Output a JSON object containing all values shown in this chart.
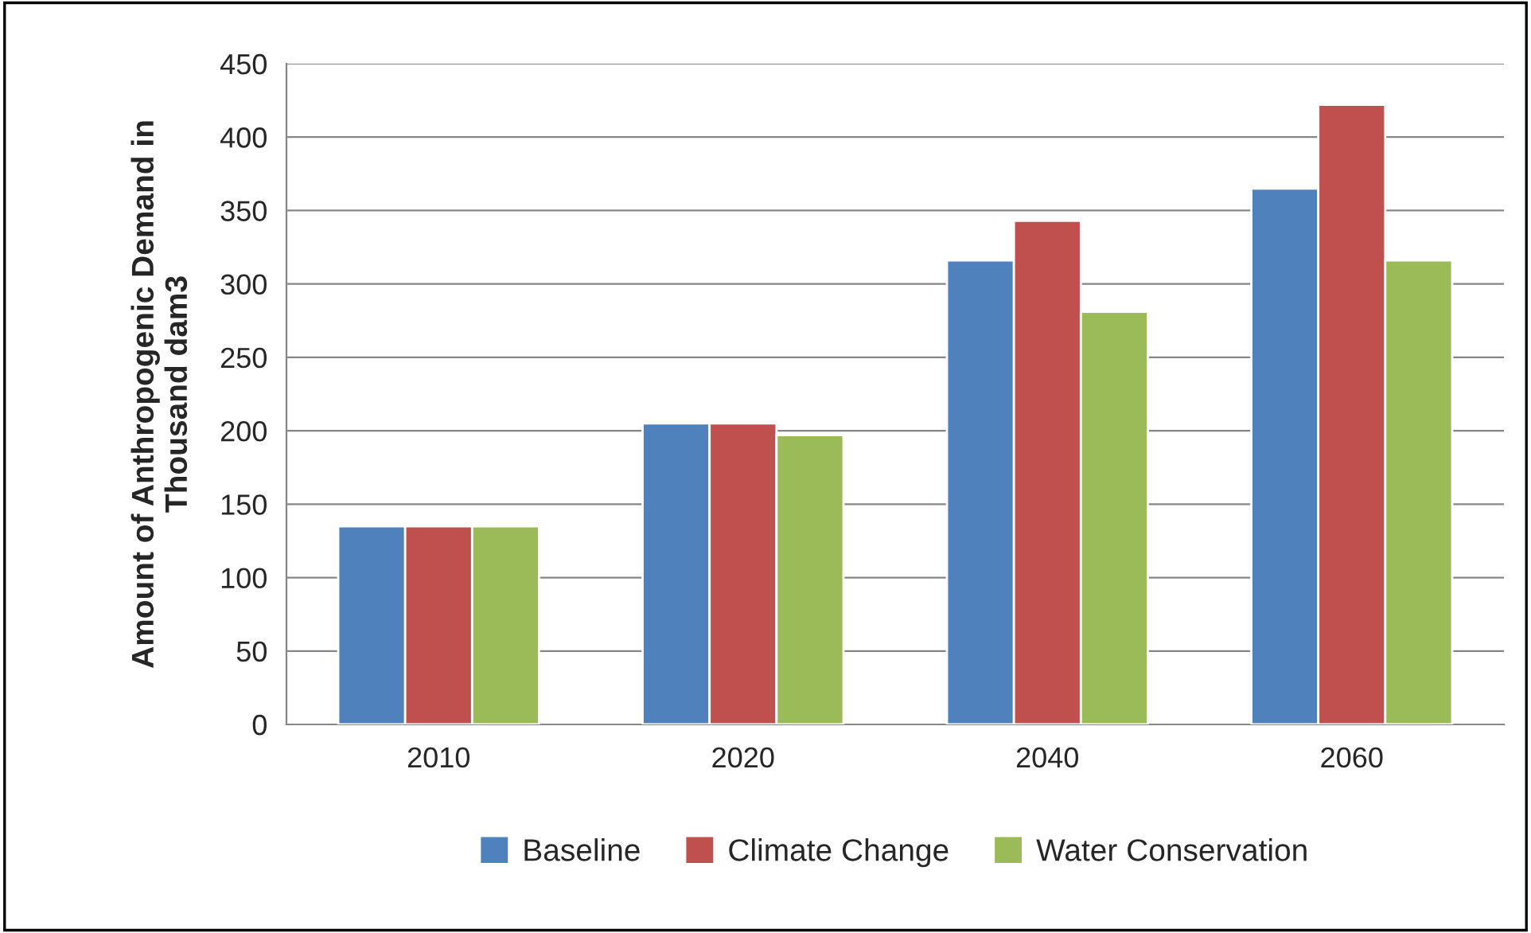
{
  "chart_data": {
    "type": "bar",
    "ylabel": "Amount of Anthropogenic Demand in\nThousand dam3",
    "categories": [
      "2010",
      "2020",
      "2040",
      "2060"
    ],
    "series": [
      {
        "name": "Baseline",
        "color": "#4f81bd",
        "values": [
          135,
          205,
          316,
          365
        ]
      },
      {
        "name": "Climate Change",
        "color": "#c0504d",
        "values": [
          135,
          205,
          343,
          422
        ]
      },
      {
        "name": "Water Conservation",
        "color": "#9bbb59",
        "values": [
          135,
          197,
          281,
          316
        ]
      }
    ],
    "ylim": [
      0,
      450
    ],
    "yticks": [
      0,
      50,
      100,
      150,
      200,
      250,
      300,
      350,
      400,
      450
    ],
    "grid": "y",
    "legend": "bottom"
  }
}
